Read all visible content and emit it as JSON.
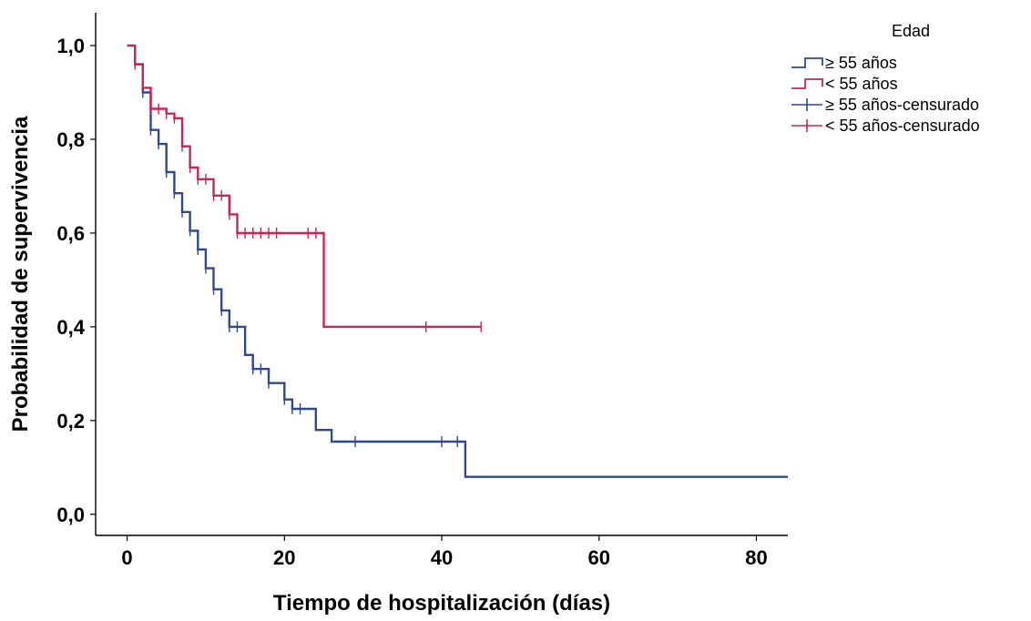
{
  "chart_data": {
    "type": "line",
    "subtype": "kaplan-meier",
    "title": "",
    "xlabel": "Tiempo de hospitalización (días)",
    "ylabel": "Probabilidad de supervivencia",
    "xlim": [
      -4,
      84
    ],
    "ylim": [
      -0.045,
      1.07
    ],
    "x_ticks": [
      0,
      20,
      40,
      60,
      80
    ],
    "x_tick_labels": [
      "0",
      "20",
      "40",
      "60",
      "80"
    ],
    "y_ticks": [
      0.0,
      0.2,
      0.4,
      0.6,
      0.8,
      1.0
    ],
    "y_tick_labels": [
      "0,0",
      "0,2",
      "0,4",
      "0,6",
      "0,8",
      "1,0"
    ],
    "grid": false,
    "legend": {
      "title": "Edad",
      "position": "top-right",
      "entries": [
        "≥ 55 años",
        "< 55 años",
        "≥ 55 años-censurado",
        "< 55 años-censurado"
      ]
    },
    "series": [
      {
        "name": "≥ 55 años",
        "censored_name": "≥ 55 años-censurado",
        "color": "#2e4a8a",
        "steps": [
          [
            1,
            1.0
          ],
          [
            1,
            0.96
          ],
          [
            2,
            0.96
          ],
          [
            2,
            0.9
          ],
          [
            3,
            0.9
          ],
          [
            3,
            0.82
          ],
          [
            4,
            0.82
          ],
          [
            4,
            0.79
          ],
          [
            5,
            0.79
          ],
          [
            5,
            0.73
          ],
          [
            6,
            0.73
          ],
          [
            6,
            0.685
          ],
          [
            7,
            0.685
          ],
          [
            7,
            0.645
          ],
          [
            8,
            0.645
          ],
          [
            8,
            0.605
          ],
          [
            9,
            0.605
          ],
          [
            9,
            0.565
          ],
          [
            10,
            0.565
          ],
          [
            10,
            0.525
          ],
          [
            11,
            0.525
          ],
          [
            11,
            0.48
          ],
          [
            12,
            0.48
          ],
          [
            12,
            0.435
          ],
          [
            13,
            0.435
          ],
          [
            13,
            0.4
          ],
          [
            15,
            0.4
          ],
          [
            15,
            0.34
          ],
          [
            16,
            0.34
          ],
          [
            16,
            0.31
          ],
          [
            18,
            0.31
          ],
          [
            18,
            0.28
          ],
          [
            20,
            0.28
          ],
          [
            20,
            0.245
          ],
          [
            21,
            0.245
          ],
          [
            21,
            0.225
          ],
          [
            24,
            0.225
          ],
          [
            24,
            0.18
          ],
          [
            26,
            0.18
          ],
          [
            26,
            0.155
          ],
          [
            43,
            0.155
          ],
          [
            43,
            0.08
          ],
          [
            84,
            0.08
          ]
        ],
        "censored": [
          [
            2,
            0.9
          ],
          [
            3,
            0.82
          ],
          [
            4,
            0.79
          ],
          [
            5,
            0.73
          ],
          [
            6,
            0.685
          ],
          [
            7,
            0.645
          ],
          [
            8,
            0.605
          ],
          [
            9,
            0.565
          ],
          [
            10,
            0.525
          ],
          [
            11,
            0.48
          ],
          [
            12,
            0.435
          ],
          [
            13,
            0.4
          ],
          [
            14,
            0.4
          ],
          [
            16,
            0.31
          ],
          [
            17,
            0.31
          ],
          [
            18,
            0.28
          ],
          [
            20,
            0.245
          ],
          [
            21,
            0.225
          ],
          [
            22,
            0.225
          ],
          [
            29,
            0.155
          ],
          [
            40,
            0.155
          ],
          [
            42,
            0.155
          ]
        ]
      },
      {
        "name": "< 55 años",
        "censored_name": "< 55 años-censurado",
        "color": "#c8274f",
        "steps": [
          [
            0,
            1.0
          ],
          [
            1,
            1.0
          ],
          [
            1,
            0.96
          ],
          [
            2,
            0.96
          ],
          [
            2,
            0.91
          ],
          [
            3,
            0.91
          ],
          [
            3,
            0.865
          ],
          [
            5,
            0.865
          ],
          [
            5,
            0.855
          ],
          [
            6,
            0.855
          ],
          [
            6,
            0.845
          ],
          [
            7,
            0.845
          ],
          [
            7,
            0.785
          ],
          [
            8,
            0.785
          ],
          [
            8,
            0.74
          ],
          [
            9,
            0.74
          ],
          [
            9,
            0.715
          ],
          [
            11,
            0.715
          ],
          [
            11,
            0.68
          ],
          [
            13,
            0.68
          ],
          [
            13,
            0.64
          ],
          [
            14,
            0.64
          ],
          [
            14,
            0.6
          ],
          [
            25,
            0.6
          ],
          [
            25,
            0.4
          ],
          [
            45,
            0.4
          ]
        ],
        "censored": [
          [
            1,
            0.96
          ],
          [
            3,
            0.865
          ],
          [
            4,
            0.865
          ],
          [
            5,
            0.855
          ],
          [
            6,
            0.845
          ],
          [
            7,
            0.785
          ],
          [
            8,
            0.74
          ],
          [
            9,
            0.715
          ],
          [
            10,
            0.715
          ],
          [
            11,
            0.68
          ],
          [
            12,
            0.68
          ],
          [
            13,
            0.64
          ],
          [
            14,
            0.6
          ],
          [
            15,
            0.6
          ],
          [
            16,
            0.6
          ],
          [
            17,
            0.6
          ],
          [
            18,
            0.6
          ],
          [
            19,
            0.6
          ],
          [
            23,
            0.6
          ],
          [
            24,
            0.6
          ],
          [
            38,
            0.4
          ],
          [
            45,
            0.4
          ]
        ]
      }
    ]
  }
}
